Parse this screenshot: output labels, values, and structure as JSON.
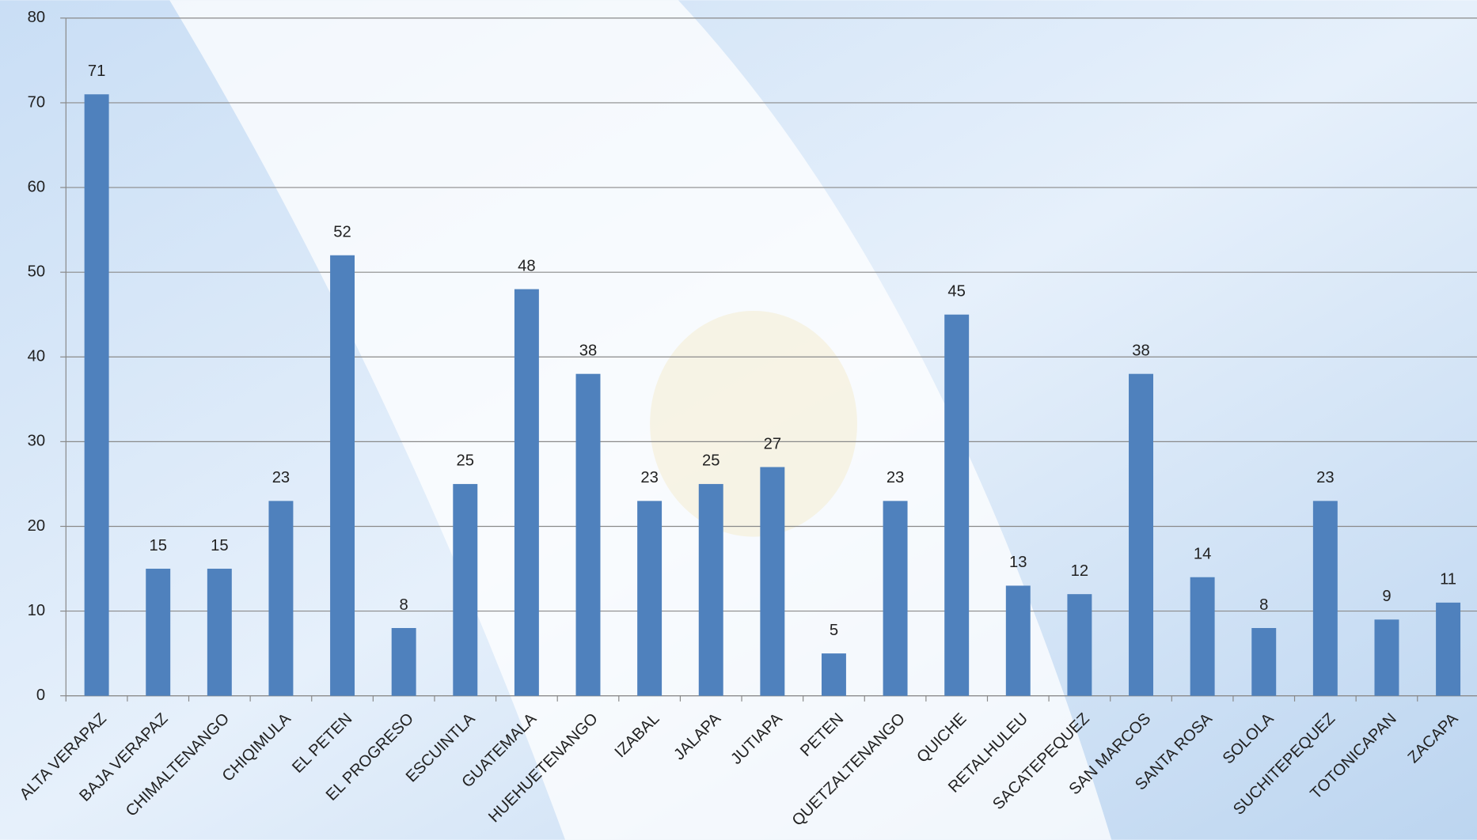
{
  "chart_data": {
    "type": "bar",
    "categories": [
      "ALTA VERAPAZ",
      "BAJA VERAPAZ",
      "CHIMALTENANGO",
      "CHIQIMULA",
      "EL PETEN",
      "EL PROGRESO",
      "ESCUINTLA",
      "GUATEMALA",
      "HUEHUETENANGO",
      "IZABAL",
      "JALAPA",
      "JUTIAPA",
      "PETEN",
      "QUETZALTENANGO",
      "QUICHE",
      "RETALHULEU",
      "SACATEPEQUEZ",
      "SAN MARCOS",
      "SANTA ROSA",
      "SOLOLA",
      "SUCHITEPEQUEZ",
      "TOTONICAPAN",
      "ZACAPA"
    ],
    "values": [
      71,
      15,
      15,
      23,
      52,
      8,
      25,
      48,
      38,
      23,
      25,
      27,
      5,
      23,
      45,
      13,
      12,
      38,
      14,
      8,
      23,
      9,
      11
    ],
    "color": "#4f81bd",
    "ylim": [
      0,
      80
    ],
    "yticks": [
      0,
      10,
      20,
      30,
      40,
      50,
      60,
      70,
      80
    ],
    "grid": true
  }
}
